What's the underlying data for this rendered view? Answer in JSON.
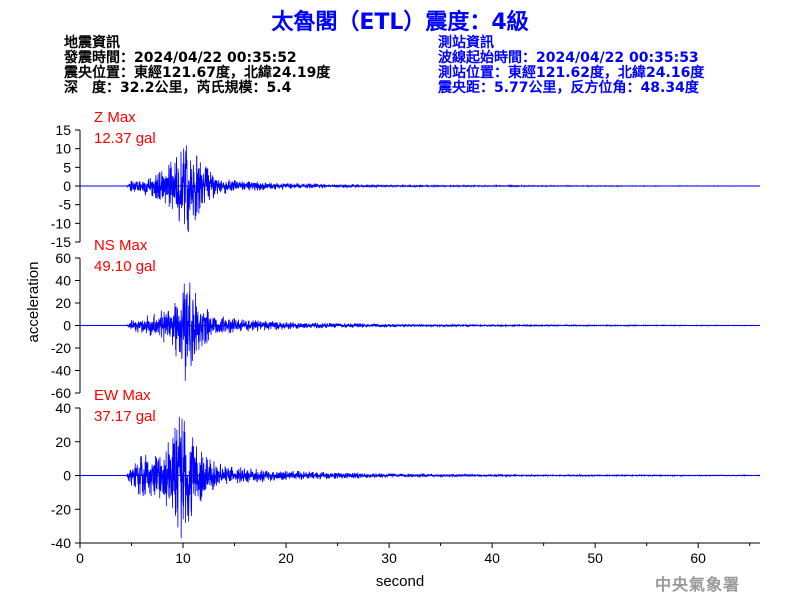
{
  "title": "太魯閣（ETL）震度：4級",
  "event_info": {
    "heading": "地震資訊",
    "origin_time": "發震時間：2024/04/22 00:35:52",
    "epicenter": "震央位置：東經121.67度，北緯24.19度",
    "depth_magnitude": "深　度：32.2公里，芮氏規模：5.4"
  },
  "station_info": {
    "heading": "測站資訊",
    "wave_start": "波線起始時間：2024/04/22 00:35:53",
    "location": "測站位置：東經121.62度，北緯24.16度",
    "distance": "震央距：5.77公里，反方位角：48.34度"
  },
  "agency": "中央氣象署",
  "colors": {
    "trace": "#0000ff",
    "max_label": "#ff0000",
    "axis": "#000000",
    "title": "#0000ff"
  },
  "chart_data": {
    "type": "line",
    "xlabel": "second",
    "ylabel": "acceleration",
    "xlim": [
      0,
      66
    ],
    "xticks": [
      0,
      10,
      20,
      30,
      40,
      50,
      60
    ],
    "panels": [
      {
        "component": "Z",
        "max_title": "Z Max",
        "max_value": "12.37 gal",
        "ylim": [
          -15,
          15
        ],
        "yticks": [
          15,
          10,
          5,
          0,
          -5,
          -10,
          -15
        ],
        "peak": 12.37,
        "envelope": [
          [
            0,
            0
          ],
          [
            4.5,
            0
          ],
          [
            5,
            1.8
          ],
          [
            6,
            2.5
          ],
          [
            7,
            2.8
          ],
          [
            8,
            4.5
          ],
          [
            9,
            7
          ],
          [
            10,
            11
          ],
          [
            10.5,
            12.37
          ],
          [
            11,
            10
          ],
          [
            12,
            6
          ],
          [
            13,
            3.5
          ],
          [
            14,
            2.2
          ],
          [
            16,
            1.4
          ],
          [
            20,
            0.8
          ],
          [
            25,
            0.5
          ],
          [
            30,
            0.3
          ],
          [
            35,
            0.2
          ],
          [
            45,
            0.12
          ],
          [
            55,
            0.08
          ],
          [
            66,
            0.06
          ]
        ]
      },
      {
        "component": "NS",
        "max_title": "NS Max",
        "max_value": "49.10 gal",
        "ylim": [
          -60,
          60
        ],
        "yticks": [
          60,
          40,
          20,
          0,
          -20,
          -40,
          -60
        ],
        "peak": 49.1,
        "envelope": [
          [
            0,
            0
          ],
          [
            4.5,
            0
          ],
          [
            5,
            5
          ],
          [
            6,
            9
          ],
          [
            7,
            10
          ],
          [
            8,
            14
          ],
          [
            9,
            28
          ],
          [
            10,
            40
          ],
          [
            10.2,
            49.1
          ],
          [
            11,
            32
          ],
          [
            12,
            18
          ],
          [
            13,
            11
          ],
          [
            14,
            8
          ],
          [
            16,
            5.5
          ],
          [
            20,
            3.5
          ],
          [
            25,
            2.2
          ],
          [
            30,
            1.3
          ],
          [
            35,
            0.9
          ],
          [
            45,
            0.5
          ],
          [
            55,
            0.35
          ],
          [
            66,
            0.25
          ]
        ]
      },
      {
        "component": "EW",
        "max_title": "EW Max",
        "max_value": "37.17 gal",
        "ylim": [
          -40,
          40
        ],
        "yticks": [
          40,
          20,
          0,
          -20,
          -40
        ],
        "peak": 37.17,
        "envelope": [
          [
            0,
            0
          ],
          [
            4.5,
            0
          ],
          [
            5,
            8
          ],
          [
            6,
            14
          ],
          [
            7,
            13
          ],
          [
            8,
            15
          ],
          [
            9,
            26
          ],
          [
            9.8,
            37.17
          ],
          [
            10.5,
            30
          ],
          [
            11,
            25
          ],
          [
            12,
            14
          ],
          [
            13,
            9
          ],
          [
            14,
            6.5
          ],
          [
            16,
            4.5
          ],
          [
            20,
            3
          ],
          [
            25,
            2
          ],
          [
            30,
            1.2
          ],
          [
            35,
            0.8
          ],
          [
            45,
            0.45
          ],
          [
            55,
            0.3
          ],
          [
            66,
            0.2
          ]
        ]
      }
    ]
  }
}
